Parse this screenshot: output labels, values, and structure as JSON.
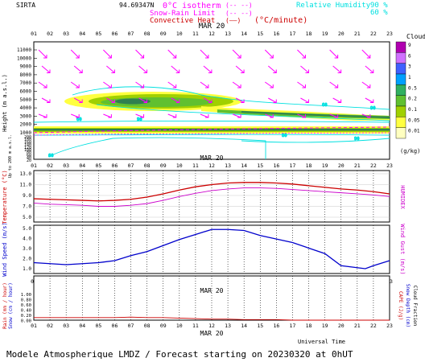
{
  "header": {
    "station": "SIRTA",
    "coords": "94.69347N",
    "legend": {
      "isotherm": "0°C isotherm",
      "isotherm_style": "(-- --)",
      "snow_rain": "Snow-Rain Limit",
      "snow_rain_style": "(-- --)",
      "convective": "Convective Heat",
      "convective_style": "(——)",
      "convective_unit": "(°C/minute)",
      "humidity": "Relative Humidity",
      "humidity_90": "90 %",
      "humidity_60": "60 %"
    },
    "colors": {
      "magenta": "#ff00ff",
      "cyan": "#00e0e0",
      "red": "#cc0000",
      "blue": "#0000cc"
    }
  },
  "hours": [
    "01",
    "02",
    "03",
    "04",
    "05",
    "06",
    "07",
    "08",
    "09",
    "10",
    "11",
    "12",
    "13",
    "14",
    "15",
    "16",
    "17",
    "18",
    "19",
    "20",
    "21",
    "22",
    "23"
  ],
  "date_label": "MAR 20",
  "footer": {
    "utime": "Universal Time",
    "title": "Modele Atmospherique LMDZ / Forecast starting on 20230320 at 0hUT"
  },
  "chart_data": [
    {
      "type": "heatmap",
      "id": "clouds",
      "ylabel": "Height (m a.s.l.)",
      "ylabel2": "Up to 200 m a.s.l.",
      "yticks_upper": [
        "11000",
        "10000",
        "9000",
        "8000",
        "7000",
        "6000",
        "5000",
        "4000",
        "3000",
        "2000",
        "1000"
      ],
      "yticks_lower": [
        "200",
        "180",
        "160",
        "140",
        "120",
        "100",
        "80",
        "60",
        "40",
        "20"
      ],
      "colorbar_title": "Clouds",
      "colorbar_unit": "(g/kg)",
      "colorbar_labels": [
        "9",
        "6",
        "3",
        "1",
        "0.5",
        "0.2",
        "0.1",
        "0.05",
        "0.01"
      ],
      "colorbar_colors": [
        "#b000b0",
        "#d070ff",
        "#4060ff",
        "#00a0ff",
        "#30b060",
        "#60c030",
        "#a0d000",
        "#ffff40",
        "#ffffc0"
      ],
      "humidity_labels": [
        "60",
        "90",
        "60",
        "90",
        "80",
        "60",
        "90"
      ]
    },
    {
      "type": "line",
      "id": "temperature",
      "ylabel": "Temperature (°C)",
      "ylabel2": "HUMIDEX",
      "yticks": [
        "13.0",
        "11.0",
        "9.0",
        "7.0",
        "5.0"
      ],
      "ylim": [
        4.0,
        13.0
      ],
      "series": [
        {
          "name": "Temperature",
          "color": "#cc0000",
          "values": [
            8.4,
            8.3,
            8.2,
            8.1,
            8.0,
            8.1,
            8.3,
            8.7,
            9.3,
            10.0,
            10.6,
            11.0,
            11.3,
            11.4,
            11.4,
            11.3,
            11.1,
            10.8,
            10.5,
            10.2,
            10.0,
            9.7,
            9.3
          ]
        },
        {
          "name": "Humidex",
          "color": "#cc00cc",
          "values": [
            7.6,
            7.4,
            7.3,
            7.2,
            7.0,
            7.0,
            7.2,
            7.5,
            8.1,
            8.8,
            9.4,
            9.9,
            10.2,
            10.4,
            10.4,
            10.3,
            10.1,
            9.9,
            9.7,
            9.5,
            9.3,
            9.1,
            8.8
          ]
        }
      ]
    },
    {
      "type": "line",
      "id": "wind",
      "ylabel": "Wind Speed (m/s)",
      "ylabel2": "Wind Gust (m/s)",
      "yticks": [
        "5.0",
        "4.0",
        "3.0",
        "2.0",
        "1.0"
      ],
      "ylim": [
        0.0,
        5.0
      ],
      "series": [
        {
          "name": "Wind Speed",
          "color": "#0000cc",
          "values": [
            1.6,
            1.4,
            1.6,
            1.8,
            2.3,
            2.7,
            3.3,
            3.9,
            4.4,
            4.9,
            4.9,
            4.8,
            4.3,
            3.6,
            2.5,
            1.3,
            1.1,
            1.0,
            1.3,
            1.8
          ]
        }
      ],
      "x_index": [
        1,
        3,
        5,
        6,
        7,
        8,
        9,
        10,
        11,
        12,
        13,
        14,
        15,
        17,
        19,
        20,
        21,
        21.5,
        22,
        23
      ]
    },
    {
      "type": "line",
      "id": "rain",
      "ylabel": "Rain (mm / hour)",
      "ylabel_b": "Snow (cm / hour)",
      "ylabel2": "CAPE (J/g)",
      "ylabel2_b": "Snow Depth (cm)",
      "ylabel2_c": "Cloud Fraction",
      "yticks": [
        "1.00",
        "0.80",
        "0.60",
        "0.40",
        "0.20",
        "0.00"
      ],
      "ylim": [
        0.0,
        1.0
      ],
      "series": [
        {
          "name": "Rain",
          "color": "#cc0000",
          "values": [
            0.05,
            0.05,
            0.05,
            0.05,
            0.05,
            0.05,
            0.06,
            0.05,
            0.05,
            0.04,
            0.03,
            0.02,
            0.02,
            0.01,
            0.01,
            0.01,
            0.0,
            0.0,
            0.0,
            0.0,
            0.0,
            0.0,
            0.0
          ]
        }
      ]
    }
  ]
}
